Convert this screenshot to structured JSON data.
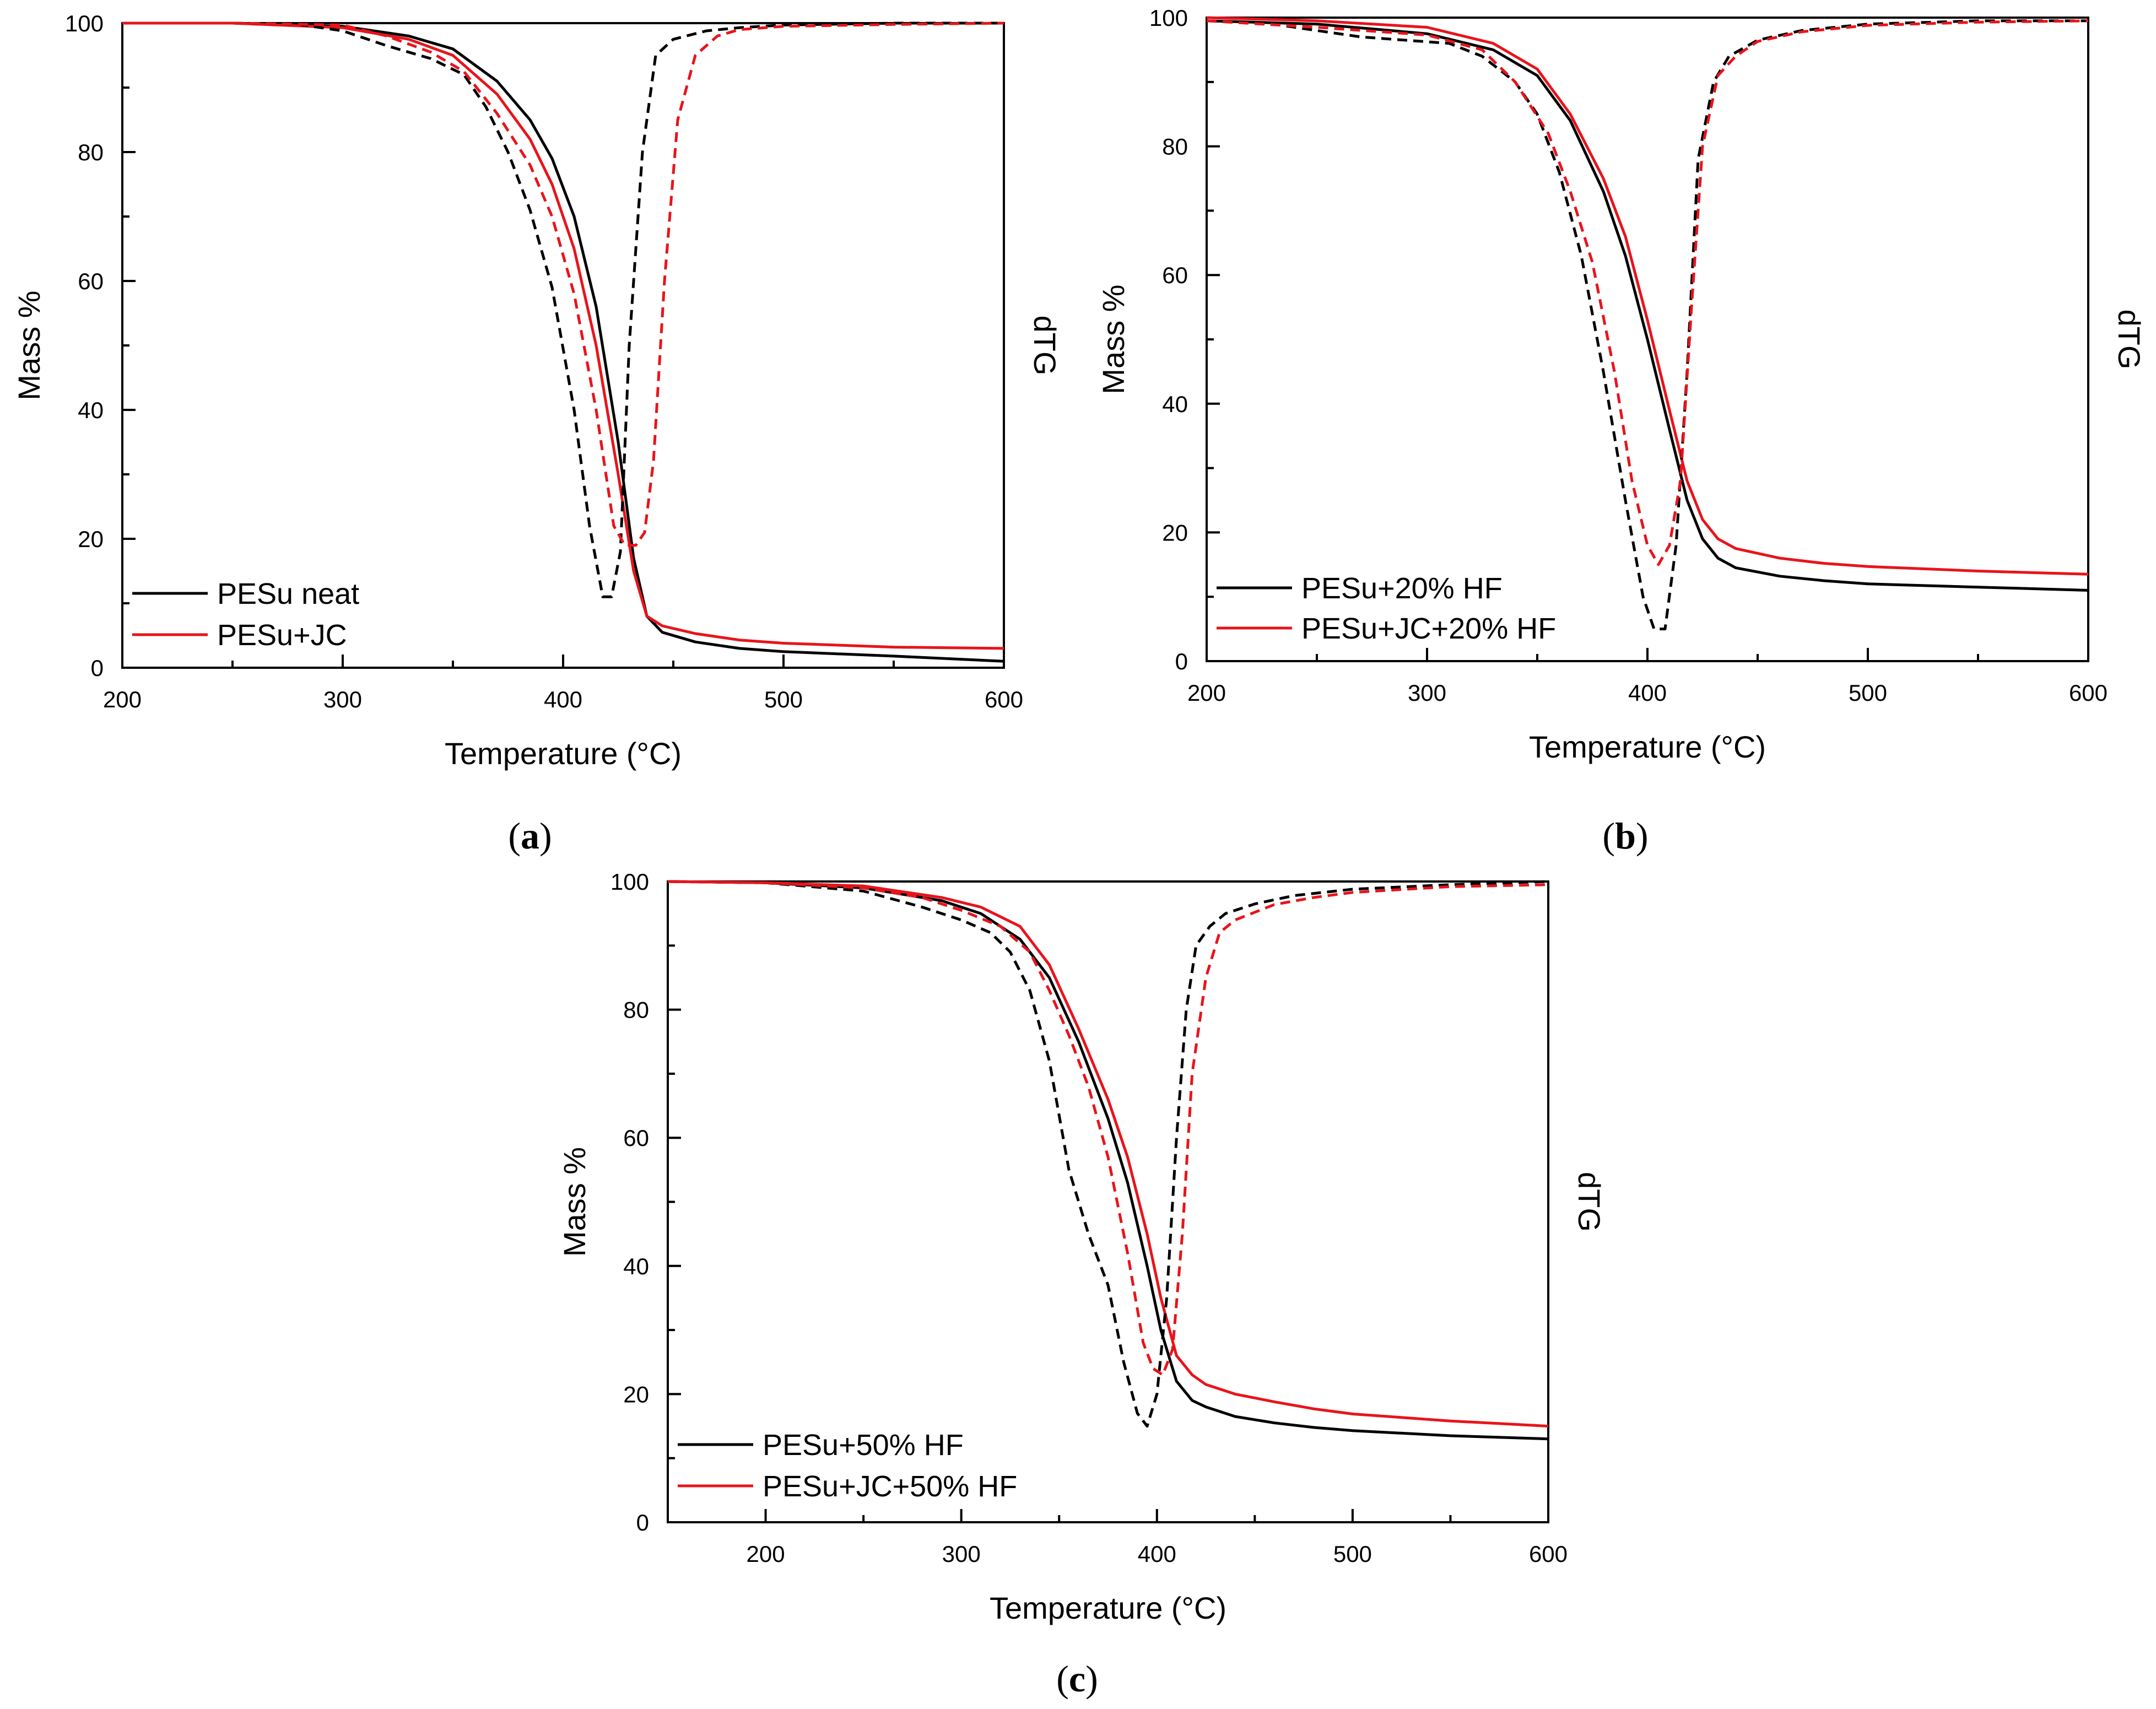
{
  "colors": {
    "neat": "#000000",
    "jc": "#e8141b",
    "axis": "#000000"
  },
  "chart_data": [
    {
      "type": "line",
      "panel": "(a)",
      "panel_letter": "a",
      "xlabel": "Temperature (°C)",
      "ylabel": "Mass %",
      "y2label": "dTG",
      "xlim": [
        200,
        600
      ],
      "ylim": [
        0,
        100
      ],
      "xticks": [
        200,
        300,
        400,
        500,
        600
      ],
      "yticks": [
        0,
        20,
        40,
        60,
        80,
        100
      ],
      "legend_position": "bottom-left",
      "series": [
        {
          "name": "PESu neat",
          "kind": "mass",
          "color": "#000000",
          "x": [
            200,
            250,
            300,
            330,
            350,
            370,
            385,
            395,
            405,
            415,
            425,
            432,
            438,
            445,
            460,
            480,
            500,
            550,
            600
          ],
          "y": [
            100,
            100,
            99.5,
            98,
            96,
            91,
            85,
            79,
            70,
            56,
            35,
            17,
            8,
            5.5,
            4,
            3,
            2.5,
            1.8,
            1
          ]
        },
        {
          "name": "PESu+JC",
          "kind": "mass",
          "color": "#e8141b",
          "x": [
            200,
            250,
            300,
            330,
            350,
            370,
            385,
            395,
            405,
            415,
            425,
            432,
            438,
            445,
            460,
            480,
            500,
            550,
            600
          ],
          "y": [
            100,
            100,
            99.3,
            97.5,
            95,
            89,
            82,
            75,
            65,
            50,
            30,
            15,
            8,
            6.5,
            5.3,
            4.3,
            3.8,
            3.2,
            3
          ]
        },
        {
          "name": "",
          "kind": "dtg",
          "color": "#000000",
          "x": [
            200,
            250,
            280,
            300,
            320,
            340,
            355,
            365,
            375,
            385,
            395,
            405,
            412,
            418,
            422,
            426,
            430,
            436,
            442,
            450,
            465,
            480,
            500,
            550,
            600
          ],
          "y": [
            100,
            100,
            99.8,
            98.8,
            96.5,
            94.5,
            92,
            87,
            80,
            71,
            59,
            40,
            22,
            11,
            11,
            18,
            50,
            80,
            95,
            97.5,
            98.8,
            99.3,
            99.7,
            100,
            100
          ]
        },
        {
          "name": "",
          "kind": "dtg",
          "color": "#e8141b",
          "x": [
            200,
            250,
            300,
            320,
            340,
            355,
            370,
            385,
            395,
            405,
            415,
            423,
            428,
            433,
            437,
            441,
            446,
            452,
            460,
            470,
            480,
            500,
            550,
            600
          ],
          "y": [
            100,
            100,
            99.7,
            98,
            95.5,
            92.5,
            86,
            78,
            70,
            58,
            40,
            22,
            19,
            19,
            21,
            32,
            60,
            85,
            95,
            98,
            99,
            99.5,
            99.8,
            100
          ]
        }
      ]
    },
    {
      "type": "line",
      "panel": "(b)",
      "panel_letter": "b",
      "xlabel": "Temperature (°C)",
      "ylabel": "Mass %",
      "y2label": "dTG",
      "xlim": [
        200,
        600
      ],
      "ylim": [
        0,
        100
      ],
      "xticks": [
        200,
        300,
        400,
        500,
        600
      ],
      "yticks": [
        0,
        20,
        40,
        60,
        80,
        100
      ],
      "legend_position": "bottom-left",
      "series": [
        {
          "name": "PESu+20% HF",
          "kind": "mass",
          "color": "#000000",
          "x": [
            200,
            250,
            300,
            330,
            350,
            365,
            380,
            390,
            400,
            410,
            418,
            425,
            432,
            440,
            460,
            480,
            500,
            550,
            600
          ],
          "y": [
            99.5,
            99,
            97.5,
            95,
            91,
            84,
            73,
            63,
            50,
            36,
            25,
            19,
            16,
            14.5,
            13.2,
            12.5,
            12,
            11.5,
            11
          ]
        },
        {
          "name": "PESu+JC+20% HF",
          "kind": "mass",
          "color": "#e8141b",
          "x": [
            200,
            250,
            300,
            330,
            350,
            365,
            380,
            390,
            400,
            410,
            418,
            425,
            432,
            440,
            460,
            480,
            500,
            550,
            600
          ],
          "y": [
            100,
            99.5,
            98.5,
            96,
            92,
            85,
            75,
            66,
            53,
            39,
            28,
            22,
            19,
            17.5,
            16,
            15.2,
            14.7,
            14,
            13.5
          ]
        },
        {
          "name": "",
          "kind": "dtg",
          "color": "#000000",
          "x": [
            200,
            230,
            250,
            270,
            290,
            310,
            325,
            340,
            350,
            360,
            370,
            380,
            390,
            398,
            403,
            408,
            413,
            418,
            423,
            430,
            437,
            450,
            470,
            500,
            550,
            600
          ],
          "y": [
            99.5,
            99,
            98,
            97,
            96.5,
            96,
            94,
            90,
            85,
            76,
            63,
            45,
            25,
            10,
            5,
            5,
            18,
            45,
            78,
            90,
            94,
            96.5,
            98,
            99,
            99.5,
            99.5
          ]
        },
        {
          "name": "",
          "kind": "dtg",
          "color": "#e8141b",
          "x": [
            200,
            250,
            300,
            325,
            340,
            355,
            365,
            375,
            385,
            393,
            400,
            405,
            410,
            415,
            420,
            425,
            432,
            440,
            450,
            470,
            500,
            550,
            600
          ],
          "y": [
            99.5,
            98.5,
            97.3,
            95,
            90,
            82,
            73,
            62,
            45,
            28,
            18,
            15,
            18,
            28,
            55,
            80,
            91,
            94,
            96.3,
            97.8,
            98.8,
            99.3,
            99.5
          ]
        }
      ]
    },
    {
      "type": "line",
      "panel": "(c)",
      "panel_letter": "c",
      "xlabel": "Temperature (°C)",
      "ylabel": "Mass %",
      "y2label": "dTG",
      "xlim": [
        150,
        600
      ],
      "ylim": [
        0,
        100
      ],
      "xticks": [
        200,
        300,
        400,
        500,
        600
      ],
      "yticks": [
        0,
        20,
        40,
        60,
        80,
        100
      ],
      "legend_position": "bottom-left",
      "series": [
        {
          "name": "PESu+50% HF",
          "kind": "mass",
          "color": "#000000",
          "x": [
            150,
            200,
            250,
            290,
            310,
            330,
            345,
            360,
            375,
            385,
            395,
            402,
            410,
            418,
            425,
            440,
            460,
            480,
            500,
            550,
            600
          ],
          "y": [
            100,
            99.8,
            99,
            97,
            95,
            91,
            85,
            75,
            63,
            53,
            40,
            30,
            22,
            19,
            18,
            16.5,
            15.5,
            14.8,
            14.3,
            13.5,
            13
          ]
        },
        {
          "name": "PESu+JC+50% HF",
          "kind": "mass",
          "color": "#e8141b",
          "x": [
            150,
            200,
            250,
            290,
            310,
            330,
            345,
            360,
            375,
            385,
            395,
            402,
            410,
            418,
            425,
            440,
            460,
            480,
            500,
            550,
            600
          ],
          "y": [
            100,
            99.8,
            99.3,
            97.5,
            96,
            93,
            87,
            77,
            66,
            57,
            45,
            35,
            26,
            23,
            21.5,
            20,
            18.8,
            17.7,
            16.9,
            15.8,
            15
          ]
        },
        {
          "name": "",
          "kind": "dtg",
          "color": "#000000",
          "x": [
            150,
            200,
            250,
            280,
            300,
            315,
            325,
            335,
            345,
            355,
            365,
            375,
            383,
            390,
            395,
            400,
            405,
            410,
            415,
            420,
            427,
            435,
            450,
            470,
            500,
            550,
            600
          ],
          "y": [
            100,
            99.8,
            98.5,
            96,
            94,
            92,
            89,
            83,
            72,
            55,
            45,
            37,
            25,
            17,
            15,
            20,
            35,
            60,
            80,
            90,
            93,
            95,
            96.5,
            97.8,
            98.8,
            99.5,
            100
          ]
        },
        {
          "name": "",
          "kind": "dtg",
          "color": "#e8141b",
          "x": [
            150,
            200,
            250,
            280,
            300,
            320,
            335,
            345,
            355,
            365,
            375,
            385,
            393,
            398,
            403,
            408,
            413,
            418,
            425,
            432,
            440,
            460,
            480,
            500,
            550,
            600
          ],
          "y": [
            100,
            99.8,
            99,
            97.5,
            95.5,
            93,
            89,
            83,
            76,
            68,
            57,
            42,
            28,
            24,
            23,
            27,
            45,
            70,
            85,
            92,
            94,
            96.4,
            97.5,
            98.3,
            99.2,
            99.5
          ]
        }
      ]
    }
  ]
}
